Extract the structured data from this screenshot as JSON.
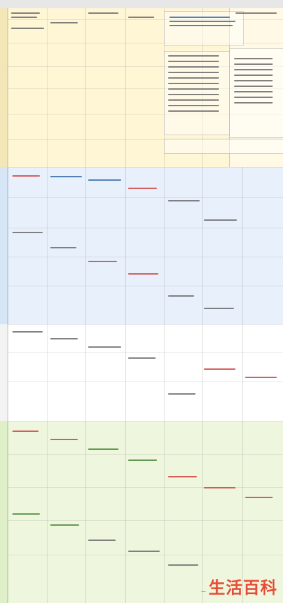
{
  "logo": {
    "sub": "—",
    "main": "生活百科"
  }
}
